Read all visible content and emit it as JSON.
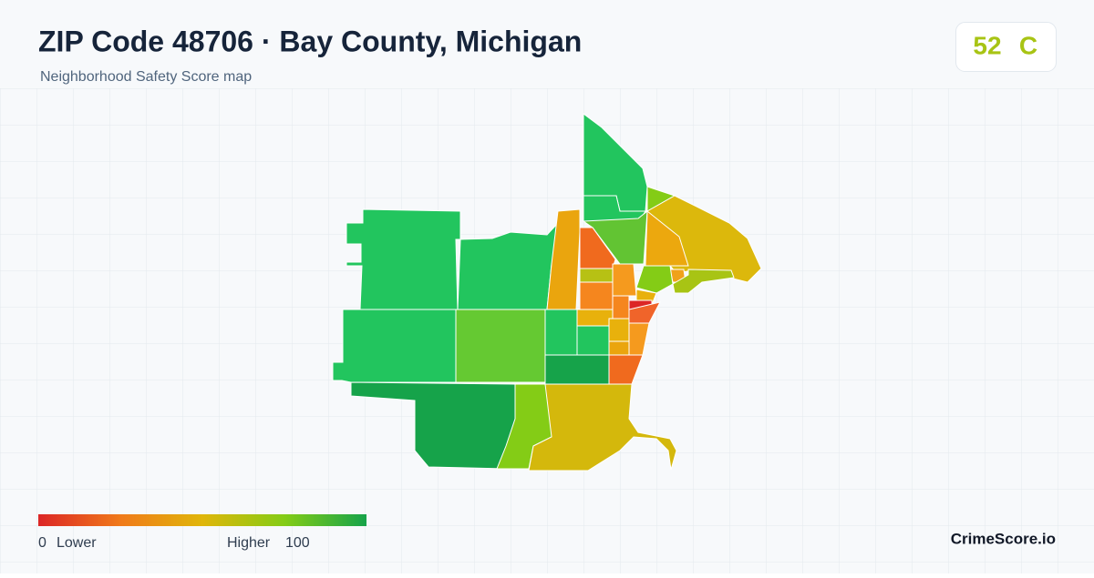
{
  "header": {
    "title": "ZIP Code 48706 · Bay County, Michigan",
    "subtitle": "Neighborhood Safety Score map"
  },
  "score": {
    "value": "52",
    "grade": "C"
  },
  "legend": {
    "min": "0",
    "min_label": "Lower",
    "max_label": "Higher",
    "max": "100"
  },
  "brand": "CrimeScore.io"
}
